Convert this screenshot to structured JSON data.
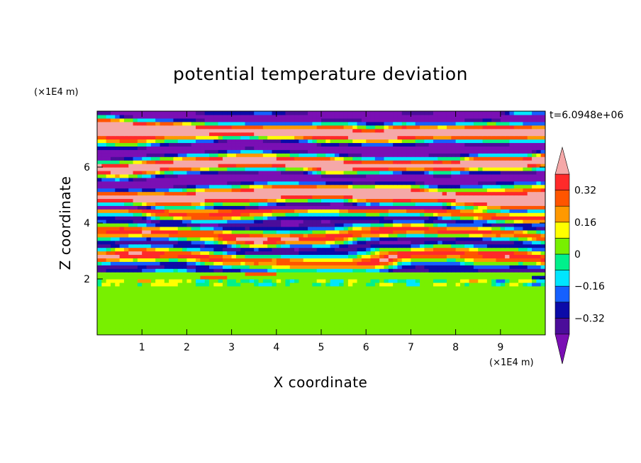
{
  "chart_data": {
    "type": "heatmap",
    "title": "potential temperature deviation",
    "xlabel": "X coordinate",
    "ylabel": "Z coordinate",
    "x_units": "(×1E4 m)",
    "y_units": "(×1E4 m)",
    "time_label": "t=6.0948e+06",
    "xlim": [
      0,
      10
    ],
    "ylim": [
      0,
      8
    ],
    "x_ticks": [
      "1",
      "2",
      "3",
      "4",
      "5",
      "6",
      "7",
      "8",
      "9"
    ],
    "y_ticks": [
      "2",
      "4",
      "6"
    ],
    "colorbar": {
      "labels": [
        "0.32",
        "0.16",
        "0",
        "-0.16",
        "-0.32"
      ],
      "label_values": [
        0.32,
        0.16,
        0,
        -0.16,
        -0.32
      ],
      "levels": [
        -0.4,
        -0.32,
        -0.24,
        -0.16,
        -0.08,
        0,
        0.08,
        0.16,
        0.24,
        0.32,
        0.4
      ],
      "colors": [
        "#7a0fb4",
        "#4b0d9a",
        "#0b0ba8",
        "#1560ff",
        "#00e6ff",
        "#00f08c",
        "#78f000",
        "#ffff00",
        "#ff9900",
        "#ff5500",
        "#ff2a2a",
        "#f5a8a8"
      ],
      "extend": "both"
    },
    "regions": [
      {
        "z": [
          0,
          2.0
        ],
        "pattern": "green and yellow-green mottled, near 0 to 0.08"
      },
      {
        "z": [
          2.0,
          2.3
        ],
        "pattern": "cyan-green band with thin red and blue streaks"
      },
      {
        "z": [
          2.3,
          4.5
        ],
        "pattern": "interleaved thin layers spanning full range, -0.4 to 0.4"
      },
      {
        "z": [
          4.5,
          8.0
        ],
        "pattern": "alternating layers of above 0.4 (pink) and below -0.32 (purple)"
      }
    ]
  },
  "colors": {
    "pink": "#f5a8a8",
    "purple": "#4b0d9a",
    "green": "#00f08c",
    "yellowgreen": "#78f000"
  }
}
